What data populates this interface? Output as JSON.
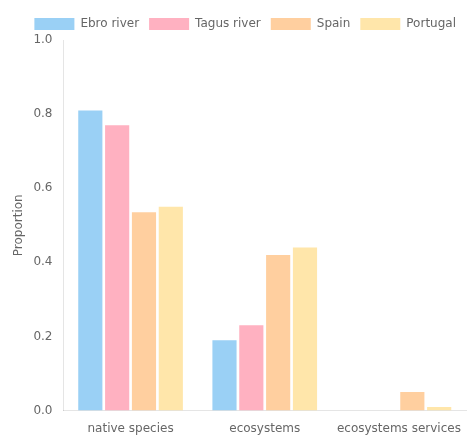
{
  "chart_data": {
    "type": "bar",
    "categories": [
      "native species",
      "ecosystems",
      "ecosystems services"
    ],
    "series": [
      {
        "name": "Ebro river",
        "values": [
          0.81,
          0.19,
          0.0
        ]
      },
      {
        "name": "Tagus river",
        "values": [
          0.77,
          0.23,
          0.0
        ]
      },
      {
        "name": "Spain",
        "values": [
          0.535,
          0.42,
          0.05
        ]
      },
      {
        "name": "Portugal",
        "values": [
          0.55,
          0.44,
          0.01
        ]
      }
    ],
    "ylabel": "Proportion",
    "ylim": [
      0.0,
      1.0
    ],
    "yticks": [
      {
        "value": 0,
        "label": "0.0"
      },
      0.2,
      0.4,
      0.6,
      0.8,
      {
        "value": 1,
        "label": "1.0"
      }
    ],
    "grid": false,
    "legend": "upper right"
  }
}
